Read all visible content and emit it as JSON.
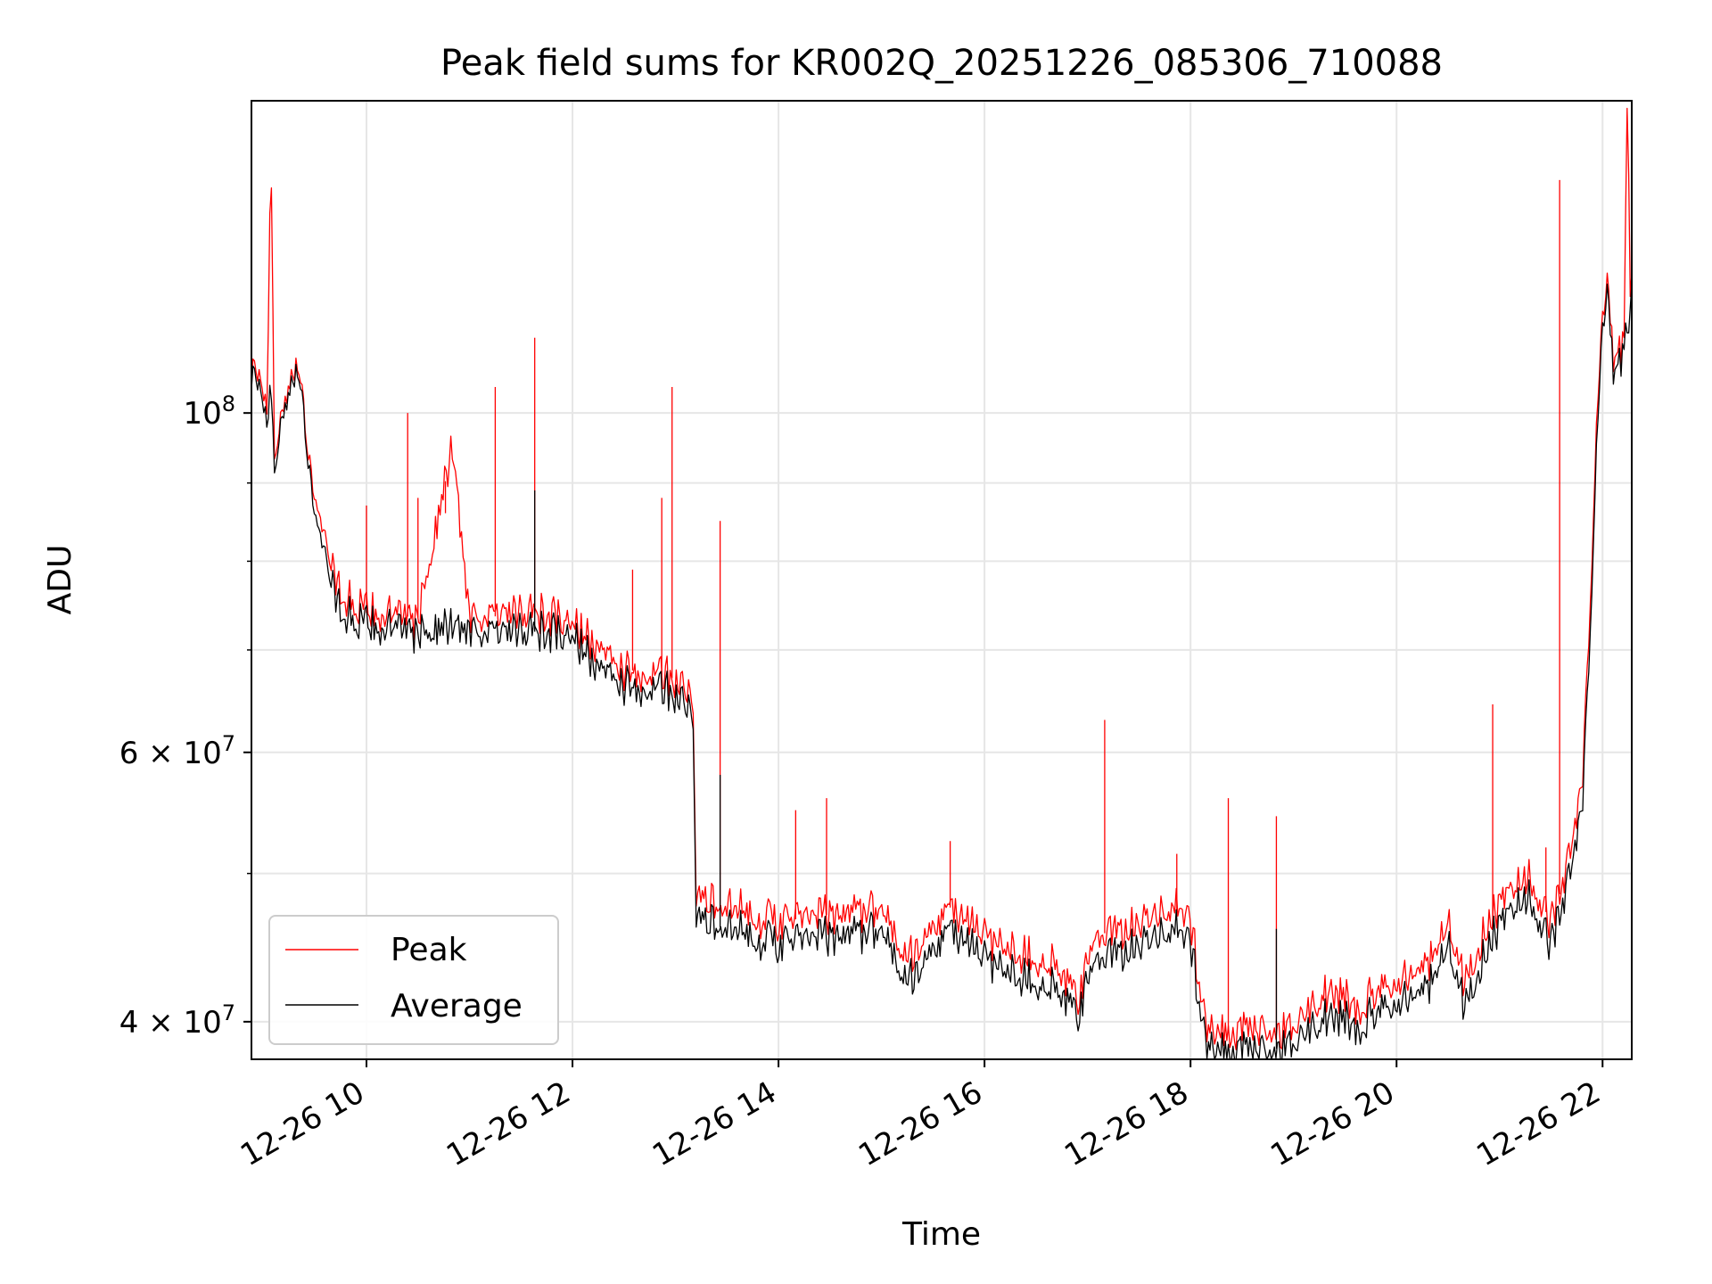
{
  "chart_data": {
    "type": "line",
    "title": "Peak field sums for KR002Q_20251226_085306_710088",
    "xlabel": "Time",
    "ylabel": "ADU",
    "yscale": "log",
    "grid": true,
    "legend_position": "lower-left",
    "xlim": [
      "2025-12-26 08:53",
      "2025-12-26 22:17"
    ],
    "ylim": [
      37800000.0,
      160000000.0
    ],
    "x_ticks": [
      "12-26 10",
      "12-26 12",
      "12-26 14",
      "12-26 16",
      "12-26 18",
      "12-26 20",
      "12-26 22"
    ],
    "y_ticks": [
      {
        "value": 40000000.0,
        "mantissa": "4",
        "exponent": "7"
      },
      {
        "value": 60000000.0,
        "mantissa": "6",
        "exponent": "7"
      },
      {
        "value": 100000000.0,
        "mantissa": "",
        "exponent": "8"
      }
    ],
    "y_minor_ticks": [
      50000000.0,
      70000000.0,
      80000000.0,
      90000000.0
    ],
    "series": [
      {
        "name": "Peak",
        "color": "#ff0000",
        "points": [
          [
            "2025-12-26 08:53",
            107000000.0
          ],
          [
            "2025-12-26 09:02",
            102000000.0
          ],
          [
            "2025-12-26 09:04",
            140000000.0
          ],
          [
            "2025-12-26 09:05",
            145000000.0
          ],
          [
            "2025-12-26 09:06",
            92000000.0
          ],
          [
            "2025-12-26 09:10",
            101000000.0
          ],
          [
            "2025-12-26 09:15",
            103000000.0
          ],
          [
            "2025-12-26 09:20",
            108000000.0
          ],
          [
            "2025-12-26 09:25",
            97000000.0
          ],
          [
            "2025-12-26 09:30",
            88000000.0
          ],
          [
            "2025-12-26 09:37",
            82000000.0
          ],
          [
            "2025-12-26 09:45",
            76000000.0
          ],
          [
            "2025-12-26 10:00",
            74000000.0
          ],
          [
            "2025-12-26 10:30",
            73500000.0
          ],
          [
            "2025-12-26 10:50",
            95000000.0
          ],
          [
            "2025-12-26 11:00",
            74000000.0
          ],
          [
            "2025-12-26 11:20",
            73500000.0
          ],
          [
            "2025-12-26 11:40",
            74000000.0
          ],
          [
            "2025-12-26 12:00",
            73000000.0
          ],
          [
            "2025-12-26 12:15",
            70000000.0
          ],
          [
            "2025-12-26 12:30",
            68000000.0
          ],
          [
            "2025-12-26 12:50",
            67500000.0
          ],
          [
            "2025-12-26 13:10",
            66500000.0
          ],
          [
            "2025-12-26 13:12",
            48000000.0
          ],
          [
            "2025-12-26 13:30",
            47500000.0
          ],
          [
            "2025-12-26 14:00",
            46500000.0
          ],
          [
            "2025-12-26 14:30",
            47000000.0
          ],
          [
            "2025-12-26 15:00",
            47500000.0
          ],
          [
            "2025-12-26 15:15",
            44000000.0
          ],
          [
            "2025-12-26 15:40",
            47500000.0
          ],
          [
            "2025-12-26 16:00",
            45500000.0
          ],
          [
            "2025-12-26 16:40",
            43500000.0
          ],
          [
            "2025-12-26 16:55",
            41500000.0
          ],
          [
            "2025-12-26 17:05",
            45500000.0
          ],
          [
            "2025-12-26 17:30",
            46500000.0
          ],
          [
            "2025-12-26 17:50",
            47500000.0
          ],
          [
            "2025-12-26 18:00",
            46500000.0
          ],
          [
            "2025-12-26 18:10",
            39500000.0
          ],
          [
            "2025-12-26 18:40",
            39500000.0
          ],
          [
            "2025-12-26 19:00",
            39500000.0
          ],
          [
            "2025-12-26 19:20",
            42000000.0
          ],
          [
            "2025-12-26 19:40",
            41000000.0
          ],
          [
            "2025-12-26 20:00",
            42500000.0
          ],
          [
            "2025-12-26 20:20",
            44000000.0
          ],
          [
            "2025-12-26 20:30",
            46500000.0
          ],
          [
            "2025-12-26 20:40",
            42500000.0
          ],
          [
            "2025-12-26 21:00",
            48000000.0
          ],
          [
            "2025-12-26 21:15",
            50000000.0
          ],
          [
            "2025-12-26 21:30",
            46500000.0
          ],
          [
            "2025-12-26 21:40",
            50500000.0
          ],
          [
            "2025-12-26 21:48",
            57000000.0
          ],
          [
            "2025-12-26 21:53",
            75000000.0
          ],
          [
            "2025-12-26 21:57",
            100000000.0
          ],
          [
            "2025-12-26 22:00",
            118000000.0
          ],
          [
            "2025-12-26 22:04",
            122000000.0
          ],
          [
            "2025-12-26 22:06",
            107000000.0
          ],
          [
            "2025-12-26 22:10",
            110000000.0
          ],
          [
            "2025-12-26 22:13",
            113000000.0
          ],
          [
            "2025-12-26 22:14",
            160000000.0
          ],
          [
            "2025-12-26 22:15",
            155000000.0
          ],
          [
            "2025-12-26 22:16",
            120000000.0
          ],
          [
            "2025-12-26 22:17",
            121000000.0
          ]
        ],
        "spikes": [
          [
            "2025-12-26 10:00",
            87000000.0
          ],
          [
            "2025-12-26 10:24",
            100000000.0
          ],
          [
            "2025-12-26 10:30",
            88000000.0
          ],
          [
            "2025-12-26 10:46",
            86000000.0
          ],
          [
            "2025-12-26 11:15",
            104000000.0
          ],
          [
            "2025-12-26 11:38",
            112000000.0
          ],
          [
            "2025-12-26 12:35",
            79000000.0
          ],
          [
            "2025-12-26 12:52",
            88000000.0
          ],
          [
            "2025-12-26 12:58",
            104000000.0
          ],
          [
            "2025-12-26 13:26",
            85000000.0
          ],
          [
            "2025-12-26 14:10",
            55000000.0
          ],
          [
            "2025-12-26 14:28",
            56000000.0
          ],
          [
            "2025-12-26 15:40",
            52500000.0
          ],
          [
            "2025-12-26 17:10",
            63000000.0
          ],
          [
            "2025-12-26 17:52",
            51500000.0
          ],
          [
            "2025-12-26 18:22",
            56000000.0
          ],
          [
            "2025-12-26 18:50",
            54500000.0
          ],
          [
            "2025-12-26 20:56",
            64500000.0
          ],
          [
            "2025-12-26 21:27",
            52000000.0
          ],
          [
            "2025-12-26 21:35",
            142000000.0
          ]
        ]
      },
      {
        "name": "Average",
        "color": "#000000",
        "points": [
          [
            "2025-12-26 08:53",
            106000000.0
          ],
          [
            "2025-12-26 09:02",
            100000000.0
          ],
          [
            "2025-12-26 09:04",
            104000000.0
          ],
          [
            "2025-12-26 09:05",
            104000000.0
          ],
          [
            "2025-12-26 09:06",
            90000000.0
          ],
          [
            "2025-12-26 09:10",
            100000000.0
          ],
          [
            "2025-12-26 09:15",
            102000000.0
          ],
          [
            "2025-12-26 09:20",
            107000000.0
          ],
          [
            "2025-12-26 09:25",
            96000000.0
          ],
          [
            "2025-12-26 09:30",
            86000000.0
          ],
          [
            "2025-12-26 09:37",
            80000000.0
          ],
          [
            "2025-12-26 09:45",
            74000000.0
          ],
          [
            "2025-12-26 10:00",
            72500000.0
          ],
          [
            "2025-12-26 10:30",
            72000000.0
          ],
          [
            "2025-12-26 10:50",
            72500000.0
          ],
          [
            "2025-12-26 11:00",
            72500000.0
          ],
          [
            "2025-12-26 11:20",
            71500000.0
          ],
          [
            "2025-12-26 11:40",
            72000000.0
          ],
          [
            "2025-12-26 12:00",
            71500000.0
          ],
          [
            "2025-12-26 12:15",
            68000000.0
          ],
          [
            "2025-12-26 12:30",
            66500000.0
          ],
          [
            "2025-12-26 12:50",
            66000000.0
          ],
          [
            "2025-12-26 13:10",
            65000000.0
          ],
          [
            "2025-12-26 13:12",
            46500000.0
          ],
          [
            "2025-12-26 13:30",
            46000000.0
          ],
          [
            "2025-12-26 14:00",
            45000000.0
          ],
          [
            "2025-12-26 14:30",
            45500000.0
          ],
          [
            "2025-12-26 15:00",
            46000000.0
          ],
          [
            "2025-12-26 15:15",
            42500000.0
          ],
          [
            "2025-12-26 15:40",
            46000000.0
          ],
          [
            "2025-12-26 16:00",
            44000000.0
          ],
          [
            "2025-12-26 16:40",
            42000000.0
          ],
          [
            "2025-12-26 16:55",
            40500000.0
          ],
          [
            "2025-12-26 17:05",
            44000000.0
          ],
          [
            "2025-12-26 17:30",
            45000000.0
          ],
          [
            "2025-12-26 17:50",
            46000000.0
          ],
          [
            "2025-12-26 18:00",
            45000000.0
          ],
          [
            "2025-12-26 18:10",
            38500000.0
          ],
          [
            "2025-12-26 18:40",
            38300000.0
          ],
          [
            "2025-12-26 19:00",
            38500000.0
          ],
          [
            "2025-12-26 19:20",
            40500000.0
          ],
          [
            "2025-12-26 19:40",
            39800000.0
          ],
          [
            "2025-12-26 20:00",
            41200000.0
          ],
          [
            "2025-12-26 20:20",
            42500000.0
          ],
          [
            "2025-12-26 20:30",
            45000000.0
          ],
          [
            "2025-12-26 20:40",
            41000000.0
          ],
          [
            "2025-12-26 21:00",
            46500000.0
          ],
          [
            "2025-12-26 21:15",
            48500000.0
          ],
          [
            "2025-12-26 21:30",
            45000000.0
          ],
          [
            "2025-12-26 21:40",
            49000000.0
          ],
          [
            "2025-12-26 21:48",
            55000000.0
          ],
          [
            "2025-12-26 21:53",
            72000000.0
          ],
          [
            "2025-12-26 21:57",
            97000000.0
          ],
          [
            "2025-12-26 22:00",
            116000000.0
          ],
          [
            "2025-12-26 22:04",
            120000000.0
          ],
          [
            "2025-12-26 22:06",
            105000000.0
          ],
          [
            "2025-12-26 22:10",
            108000000.0
          ],
          [
            "2025-12-26 22:13",
            111000000.0
          ],
          [
            "2025-12-26 22:14",
            112000000.0
          ],
          [
            "2025-12-26 22:15",
            115000000.0
          ],
          [
            "2025-12-26 22:16",
            118000000.0
          ],
          [
            "2025-12-26 22:17",
            119000000.0
          ]
        ],
        "spikes": [
          [
            "2025-12-26 11:38",
            89000000.0
          ],
          [
            "2025-12-26 13:26",
            58000000.0
          ],
          [
            "2025-12-26 18:50",
            46000000.0
          ]
        ]
      }
    ]
  }
}
